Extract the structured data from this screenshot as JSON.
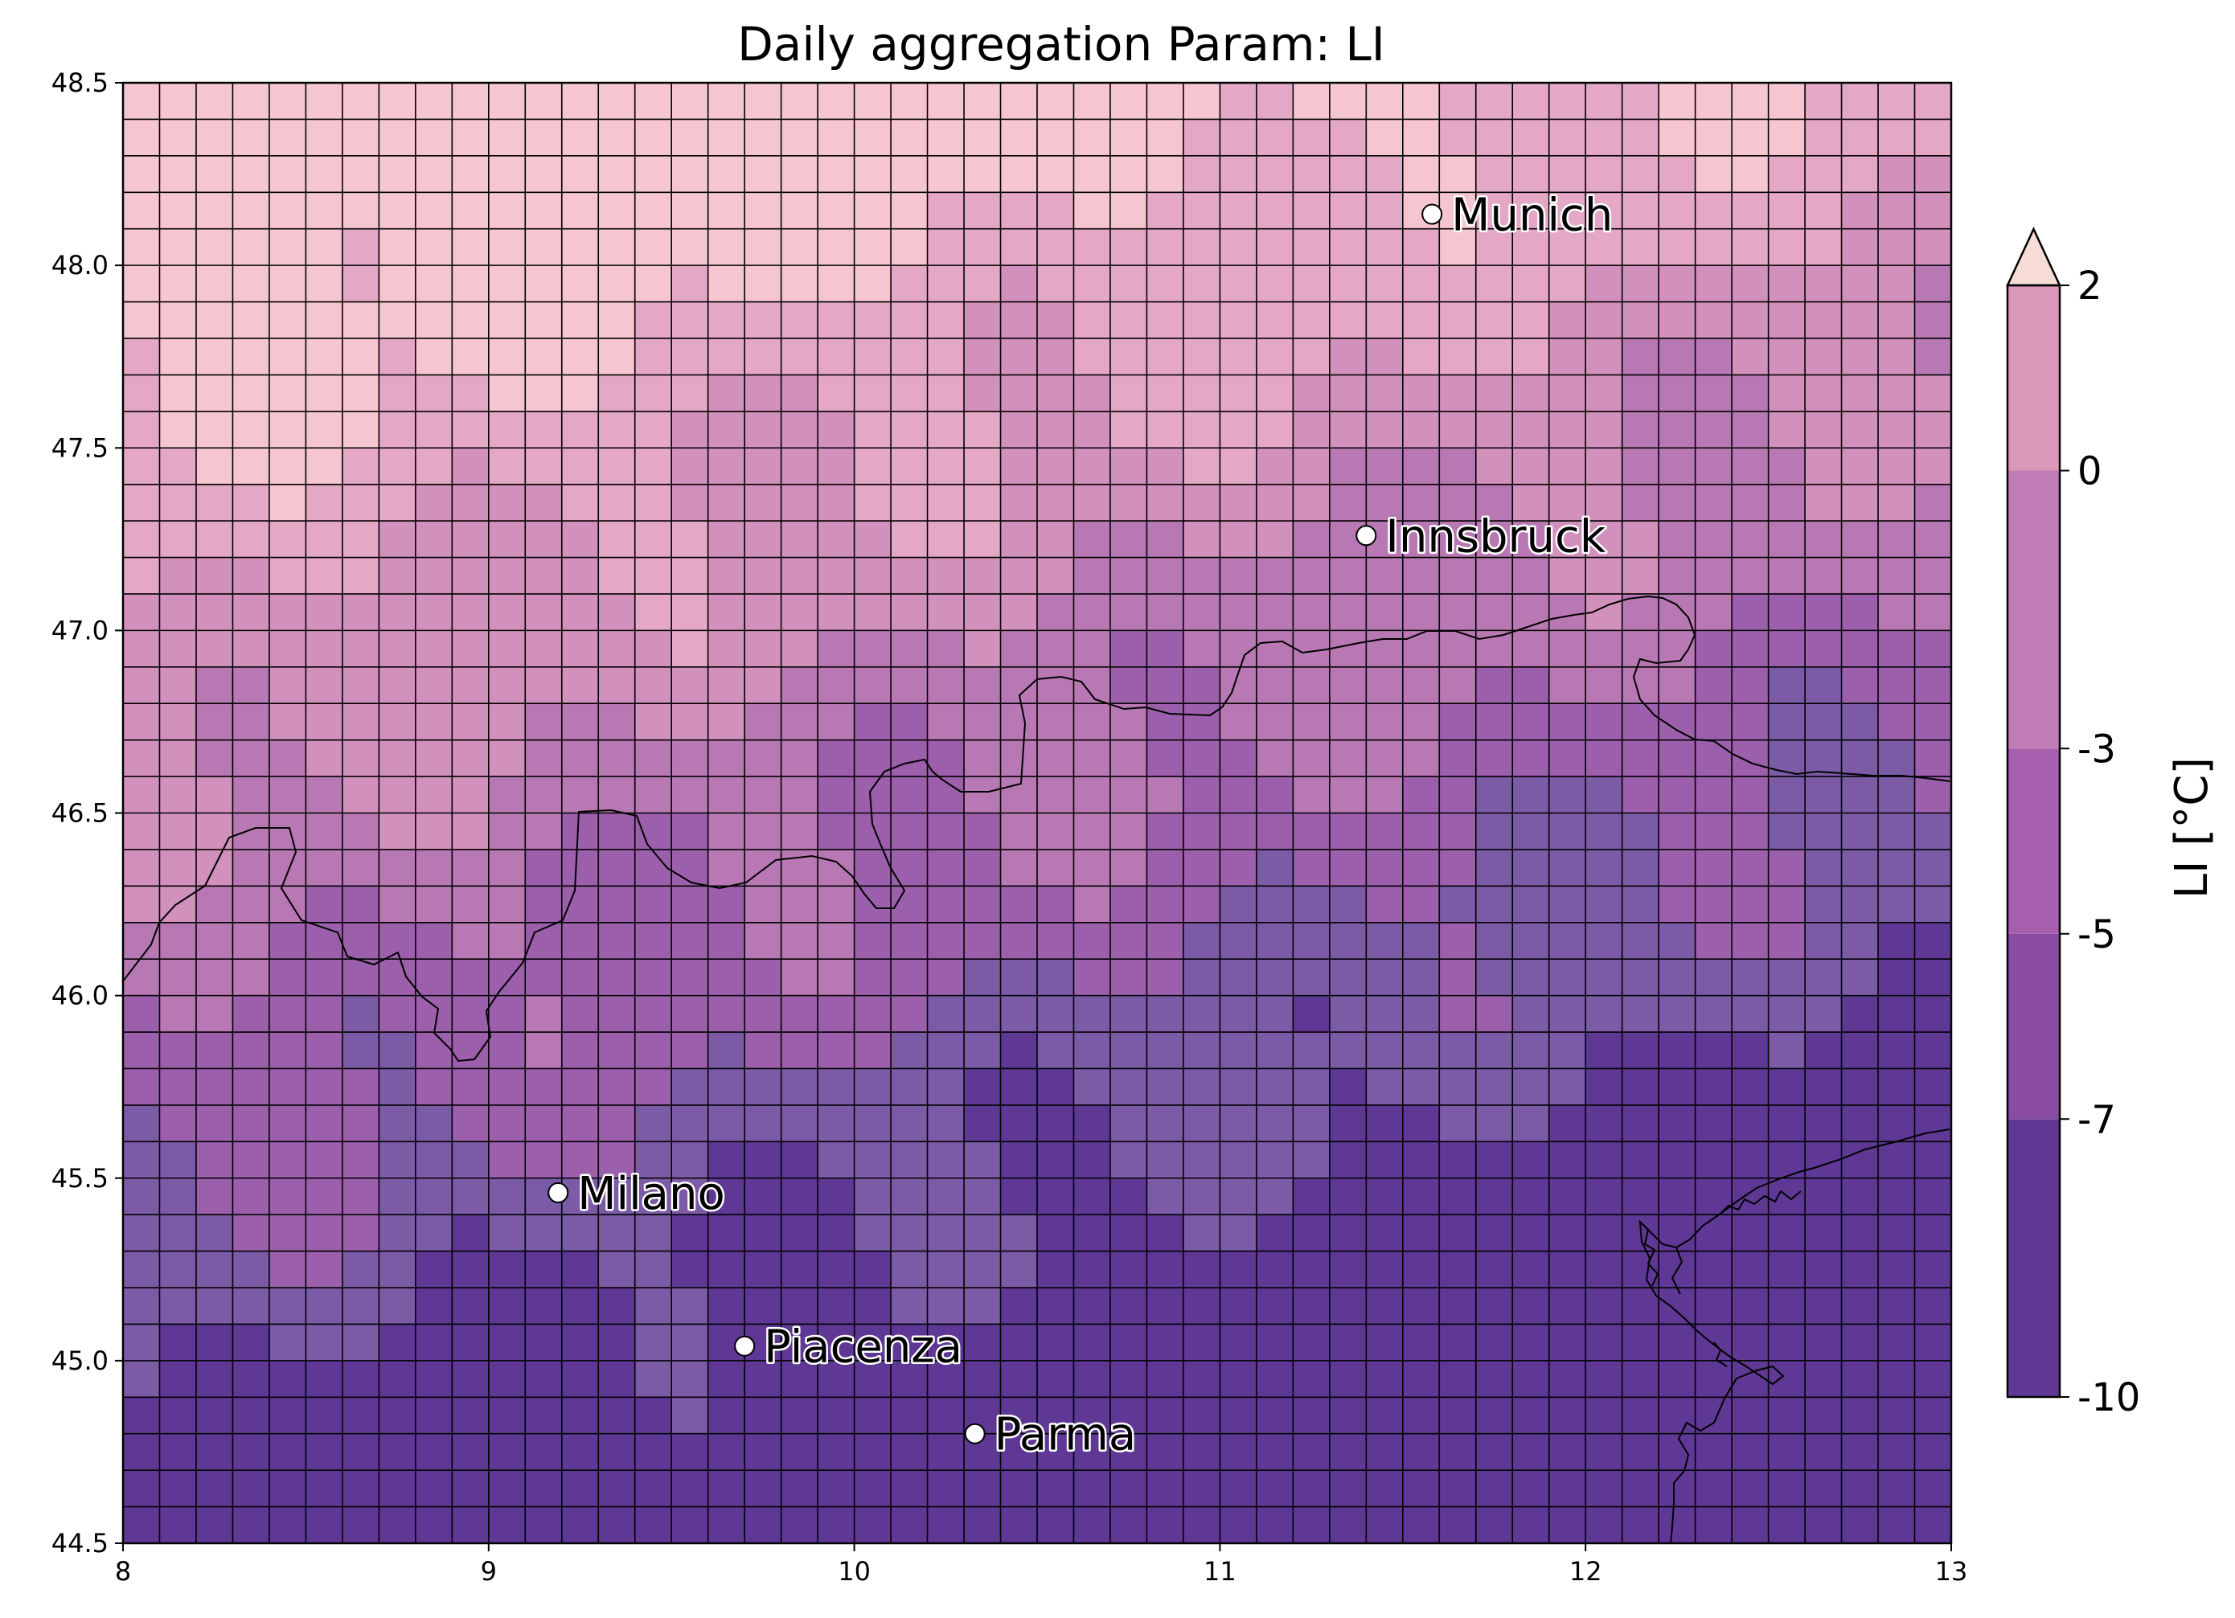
{
  "chart_data": {
    "type": "heatmap",
    "title": "Daily aggregation Param: LI",
    "x_range": [
      8,
      13
    ],
    "y_range": [
      44.5,
      48.5
    ],
    "x_ticks": [
      "8",
      "9",
      "10",
      "11",
      "12",
      "13"
    ],
    "y_ticks": [
      "44.5",
      "45.0",
      "45.5",
      "46.0",
      "46.5",
      "47.0",
      "47.5",
      "48.0",
      "48.5"
    ],
    "grid_cell_deg": 0.1,
    "colorbar": {
      "label": "LI [°C]",
      "ticks": [
        "-10",
        "-7",
        "-5",
        "-3",
        "0",
        "2"
      ],
      "levels": [
        -10,
        -7,
        -5,
        -3,
        0,
        2
      ],
      "colors": [
        "#5e3894",
        "#8a4ca3",
        "#a65fac",
        "#c07cb4",
        "#dc98ba",
        "#f7dcd6"
      ],
      "extend": "max"
    },
    "cities": [
      {
        "name": "Munich",
        "lon": 11.58,
        "lat": 48.14
      },
      {
        "name": "Innsbruck",
        "lon": 11.4,
        "lat": 47.26
      },
      {
        "name": "Milano",
        "lon": 9.19,
        "lat": 45.46
      },
      {
        "name": "Piacenza",
        "lon": 9.7,
        "lat": 45.04
      },
      {
        "name": "Parma",
        "lon": 10.33,
        "lat": 44.8
      }
    ]
  }
}
